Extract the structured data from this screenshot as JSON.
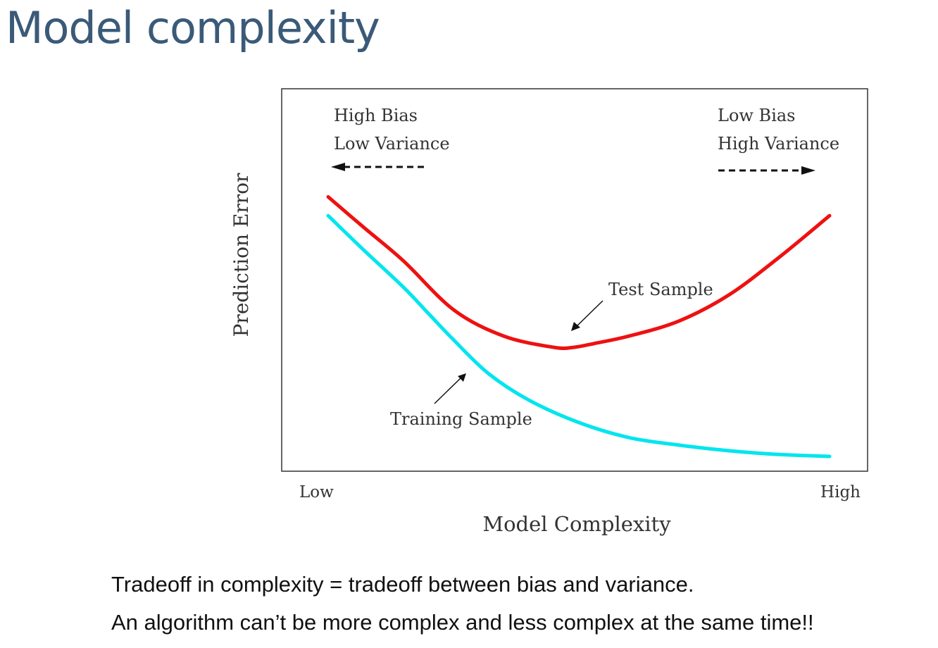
{
  "slide": {
    "title": "Model complexity",
    "captions": [
      "Tradeoff in complexity = tradeoff between bias and variance.",
      "An algorithm can’t be more complex and less complex at the same time!!"
    ]
  },
  "chart_data": {
    "type": "line",
    "title": "",
    "xlabel": "Model Complexity",
    "ylabel": "Prediction Error",
    "x_ticks": [
      "Low",
      "High"
    ],
    "xlim": [
      0,
      1
    ],
    "ylim": [
      0,
      1
    ],
    "grid": false,
    "annotations": {
      "left_line1": "High Bias",
      "left_line2": "Low Variance",
      "right_line1": "Low Bias",
      "right_line2": "High Variance",
      "test_label": "Test Sample",
      "train_label": "Training Sample"
    },
    "series": [
      {
        "name": "Test Sample",
        "color": "#ee1111",
        "x": [
          0.0,
          0.07,
          0.15,
          0.25,
          0.35,
          0.45,
          0.49,
          0.53,
          0.6,
          0.7,
          0.8,
          0.9,
          1.0
        ],
        "y": [
          0.72,
          0.64,
          0.55,
          0.42,
          0.35,
          0.32,
          0.32,
          0.33,
          0.35,
          0.39,
          0.46,
          0.56,
          0.67
        ]
      },
      {
        "name": "Training Sample",
        "color": "#00e5ee",
        "x": [
          0.0,
          0.07,
          0.15,
          0.2,
          0.25,
          0.32,
          0.4,
          0.5,
          0.6,
          0.7,
          0.8,
          0.9,
          1.0
        ],
        "y": [
          0.67,
          0.58,
          0.48,
          0.41,
          0.34,
          0.25,
          0.18,
          0.12,
          0.08,
          0.06,
          0.045,
          0.035,
          0.03
        ]
      }
    ]
  }
}
